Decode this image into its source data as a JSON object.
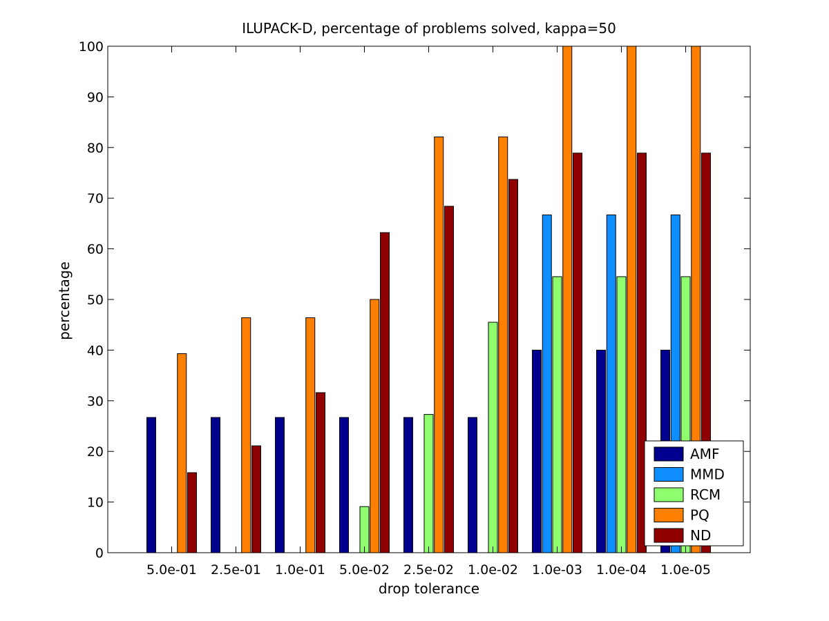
{
  "chart_data": {
    "type": "bar",
    "title": "ILUPACK-D, percentage of problems solved, kappa=50",
    "xlabel": "drop tolerance",
    "ylabel": "percentage",
    "ylim": [
      0,
      100
    ],
    "yticks": [
      0,
      10,
      20,
      30,
      40,
      50,
      60,
      70,
      80,
      90,
      100
    ],
    "categories": [
      "5.0e-01",
      "2.5e-01",
      "1.0e-01",
      "5.0e-02",
      "2.5e-02",
      "1.0e-02",
      "1.0e-03",
      "1.0e-04",
      "1.0e-05"
    ],
    "series": [
      {
        "name": "AMF",
        "color": "#00008f",
        "values": [
          26.7,
          26.7,
          26.7,
          26.7,
          26.7,
          26.7,
          40,
          40,
          40
        ]
      },
      {
        "name": "MMD",
        "color": "#0f8fff",
        "values": [
          0,
          0,
          0,
          0,
          0,
          0,
          66.7,
          66.7,
          66.7
        ]
      },
      {
        "name": "RCM",
        "color": "#8fff70",
        "values": [
          0,
          0,
          0,
          9.1,
          27.3,
          45.5,
          54.5,
          54.5,
          54.5
        ]
      },
      {
        "name": "PQ",
        "color": "#ff8000",
        "values": [
          39.3,
          46.4,
          46.4,
          50,
          82.1,
          82.1,
          100,
          100,
          100
        ]
      },
      {
        "name": "ND",
        "color": "#8f0000",
        "values": [
          15.8,
          21.1,
          31.6,
          63.2,
          68.4,
          73.7,
          78.9,
          78.9,
          78.9
        ]
      }
    ],
    "legend_position": "bottom-right",
    "grid": false
  }
}
